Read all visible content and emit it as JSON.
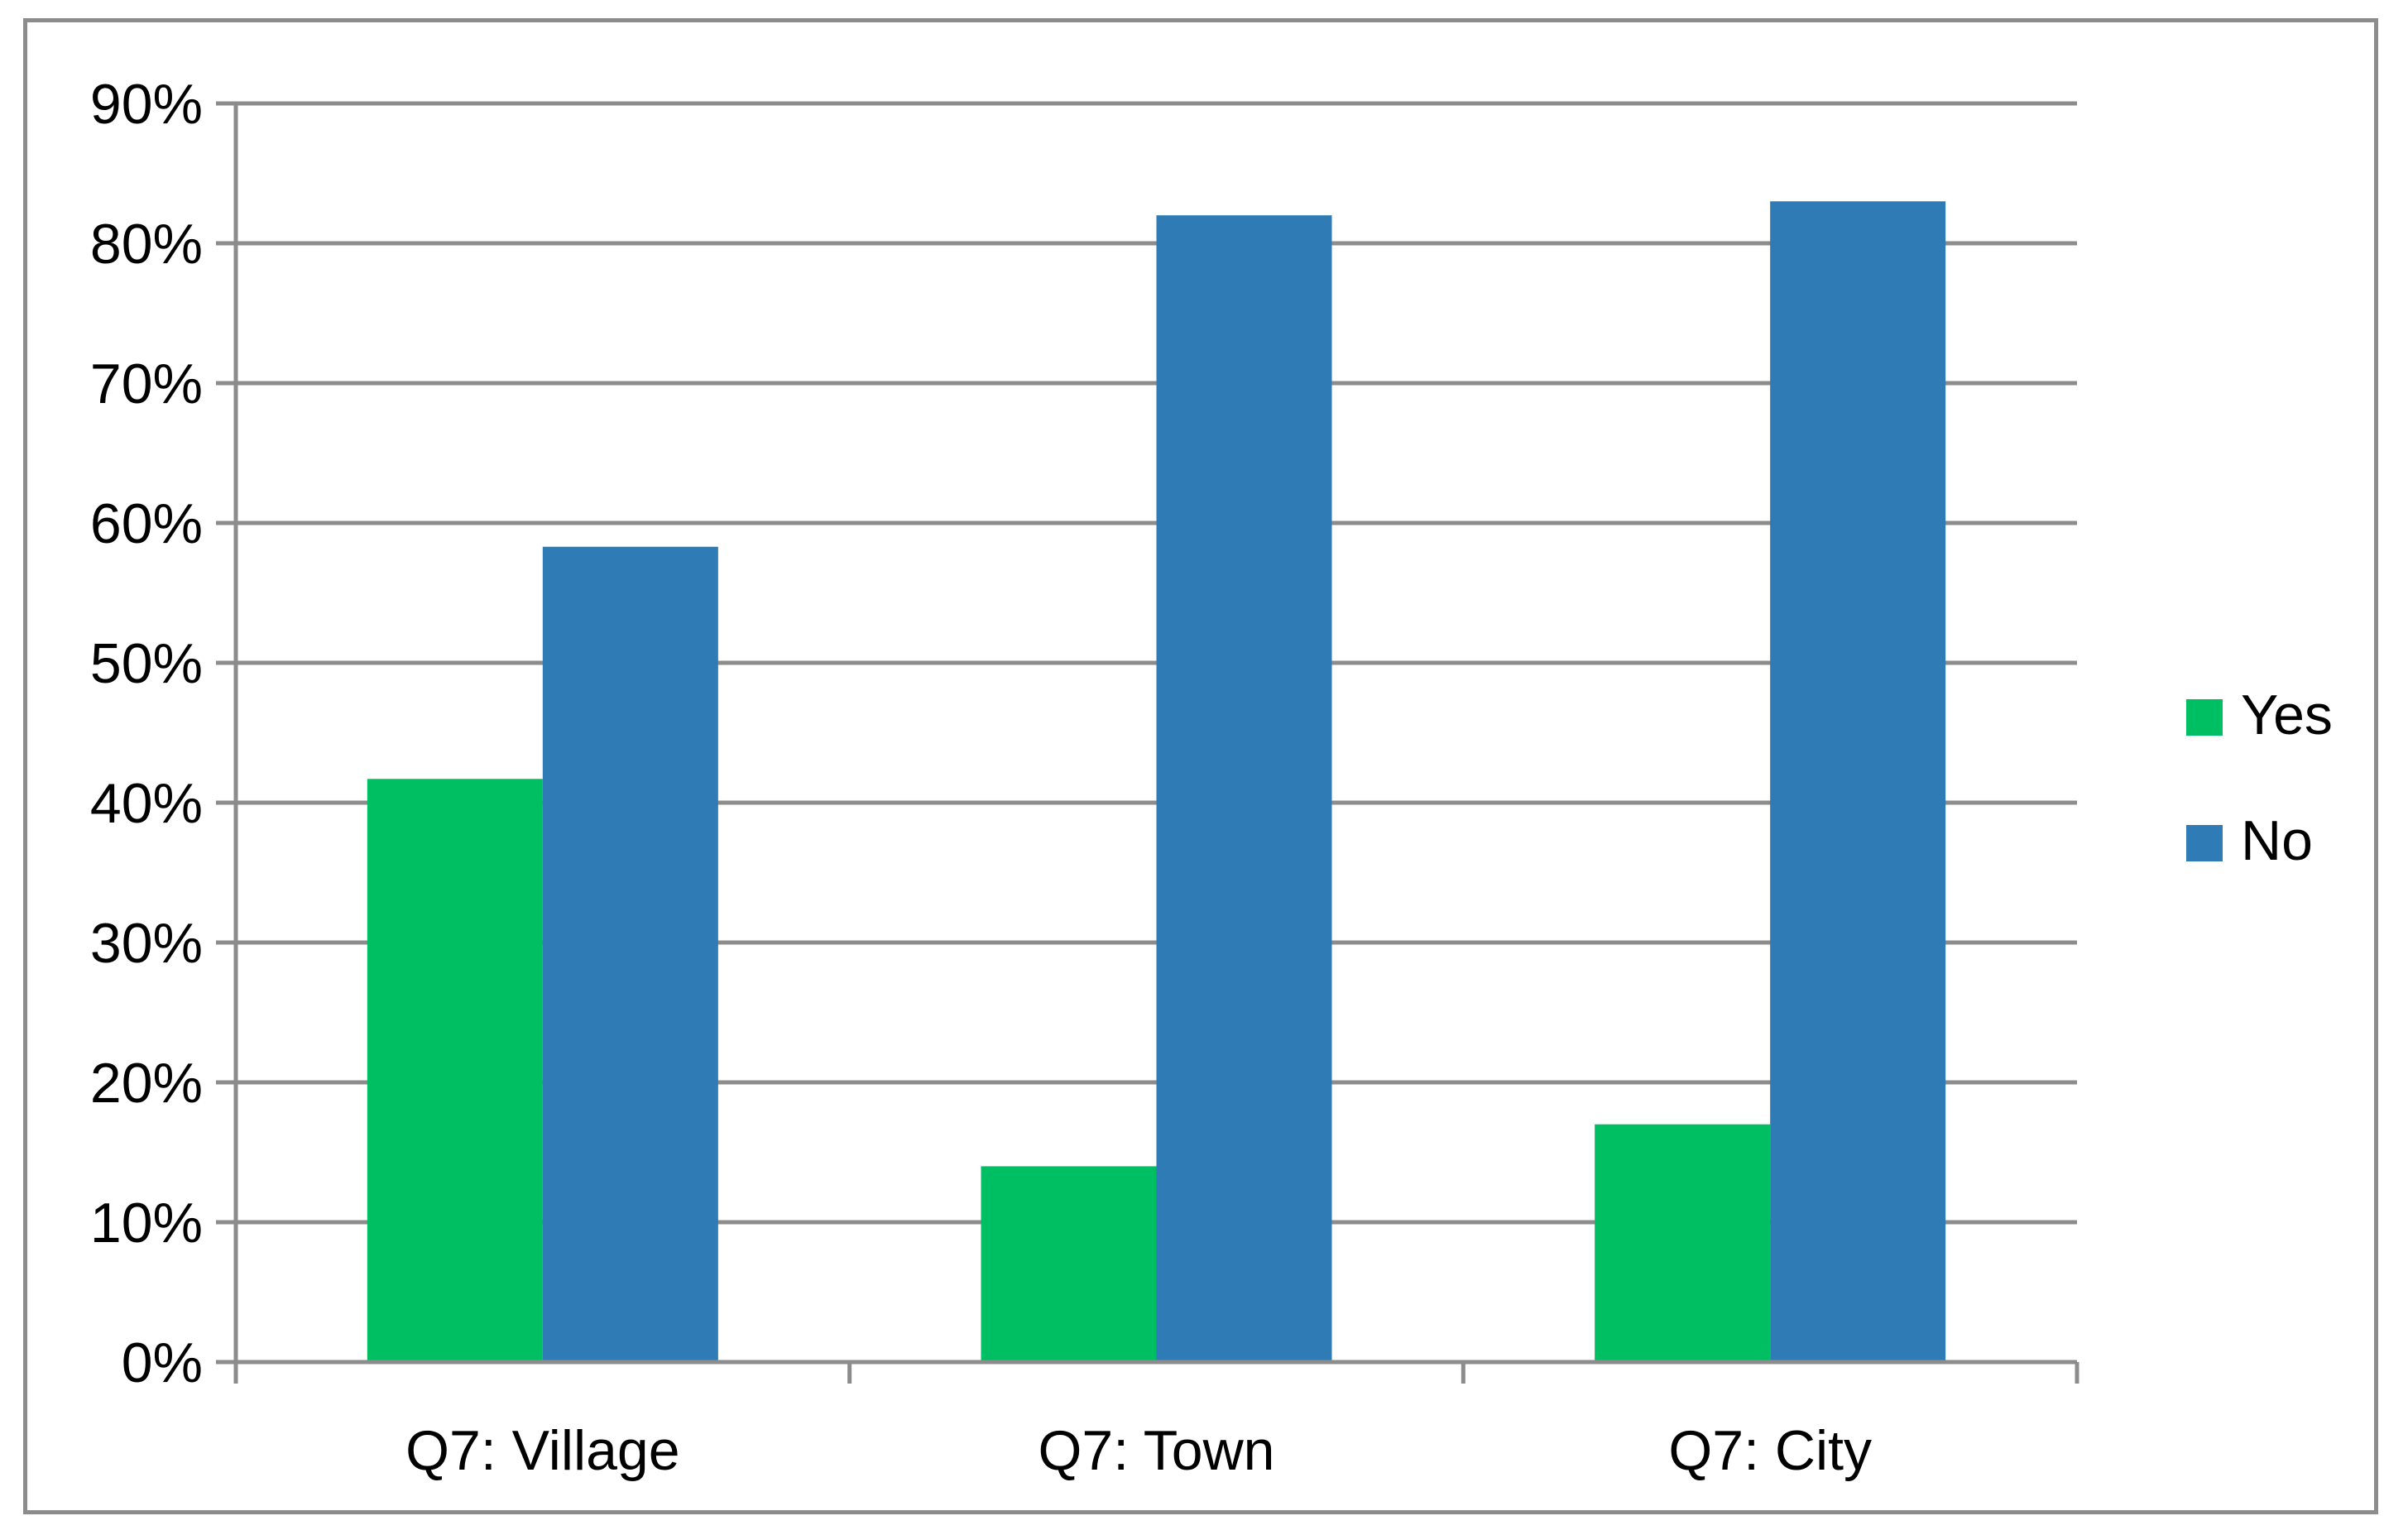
{
  "chart_data": {
    "type": "bar",
    "title": "",
    "xlabel": "",
    "ylabel": "",
    "categories": [
      "Q7: Village",
      "Q7: Town",
      "Q7: City"
    ],
    "series": [
      {
        "name": "Yes",
        "color": "#00bf63",
        "values": [
          41.7,
          14.0,
          17.0
        ]
      },
      {
        "name": "No",
        "color": "#2e7bb6",
        "values": [
          58.3,
          82.0,
          83.0
        ]
      }
    ],
    "ylim": [
      0,
      90
    ],
    "yticks": [
      0,
      10,
      20,
      30,
      40,
      50,
      60,
      70,
      80,
      90
    ],
    "ytick_format": "percent",
    "grid": true,
    "gridline_color": "#8c8c8c",
    "legend_position": "right"
  }
}
